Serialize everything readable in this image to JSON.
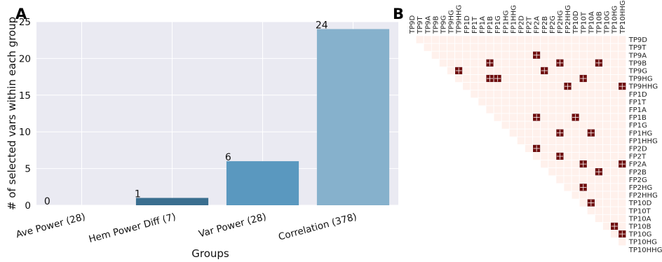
{
  "panels": {
    "a_letter": "A",
    "b_letter": "B"
  },
  "chart_data": [
    {
      "type": "bar",
      "title": "",
      "xlabel": "Groups",
      "ylabel": "# of selected vars within each group",
      "categories": [
        "Ave Power (28)",
        "Hem Power Diff (7)",
        "Var Power (28)",
        "Correlation (378)"
      ],
      "values": [
        0,
        1,
        6,
        24
      ],
      "value_labels": [
        "0",
        "1",
        "6",
        "24"
      ],
      "ylim": [
        0,
        25
      ],
      "yticks": [
        0,
        5,
        10,
        15,
        20,
        25
      ],
      "ytick_labels": [
        "0",
        "5",
        "10",
        "15",
        "20",
        "25"
      ],
      "grid": true,
      "background": "#eaeaf2",
      "bar_colors": [
        "#3a6e8f",
        "#3a6e8f",
        "#5a98bf",
        "#86b1cc"
      ]
    },
    {
      "type": "heatmap",
      "title": "",
      "layout": "upper-triangle",
      "labels": [
        "TP9D",
        "TP9T",
        "TP9A",
        "TP9B",
        "TP9G",
        "TP9HG",
        "TP9HHG",
        "FP1D",
        "FP1T",
        "FP1A",
        "FP1B",
        "FP1G",
        "FP1HG",
        "FP1HHG",
        "FP2D",
        "FP2T",
        "FP2A",
        "FP2B",
        "FP2G",
        "FP2HG",
        "FP2HHG",
        "TP10D",
        "TP10T",
        "TP10A",
        "TP10B",
        "TP10G",
        "TP10HG",
        "TP10HHG"
      ],
      "selected_pairs": [
        [
          "TP9A",
          "FP2A"
        ],
        [
          "TP9B",
          "FP1B"
        ],
        [
          "TP9B",
          "FP2HG"
        ],
        [
          "TP9B",
          "TP10B"
        ],
        [
          "TP9G",
          "TP9HHG"
        ],
        [
          "TP9G",
          "FP2B"
        ],
        [
          "TP9HG",
          "FP1B"
        ],
        [
          "TP9HG",
          "FP1G"
        ],
        [
          "TP9HG",
          "TP10T"
        ],
        [
          "TP9HHG",
          "FP2HHG"
        ],
        [
          "TP9HHG",
          "TP10HHG"
        ],
        [
          "FP1B",
          "FP2A"
        ],
        [
          "FP1B",
          "TP10D"
        ],
        [
          "FP1HG",
          "FP2HG"
        ],
        [
          "FP1HG",
          "TP10A"
        ],
        [
          "FP2D",
          "FP2A"
        ],
        [
          "FP2T",
          "FP2HG"
        ],
        [
          "FP2A",
          "TP10T"
        ],
        [
          "FP2A",
          "TP10HHG"
        ],
        [
          "FP2B",
          "TP10B"
        ],
        [
          "FP2HG",
          "TP10T"
        ],
        [
          "TP10D",
          "TP10A"
        ],
        [
          "TP10B",
          "TP10HG"
        ],
        [
          "TP10G",
          "TP10HHG"
        ]
      ],
      "colors": {
        "background": "#fff1ec",
        "grid": "#ffffff",
        "selected": "#6e0d0d"
      }
    }
  ]
}
